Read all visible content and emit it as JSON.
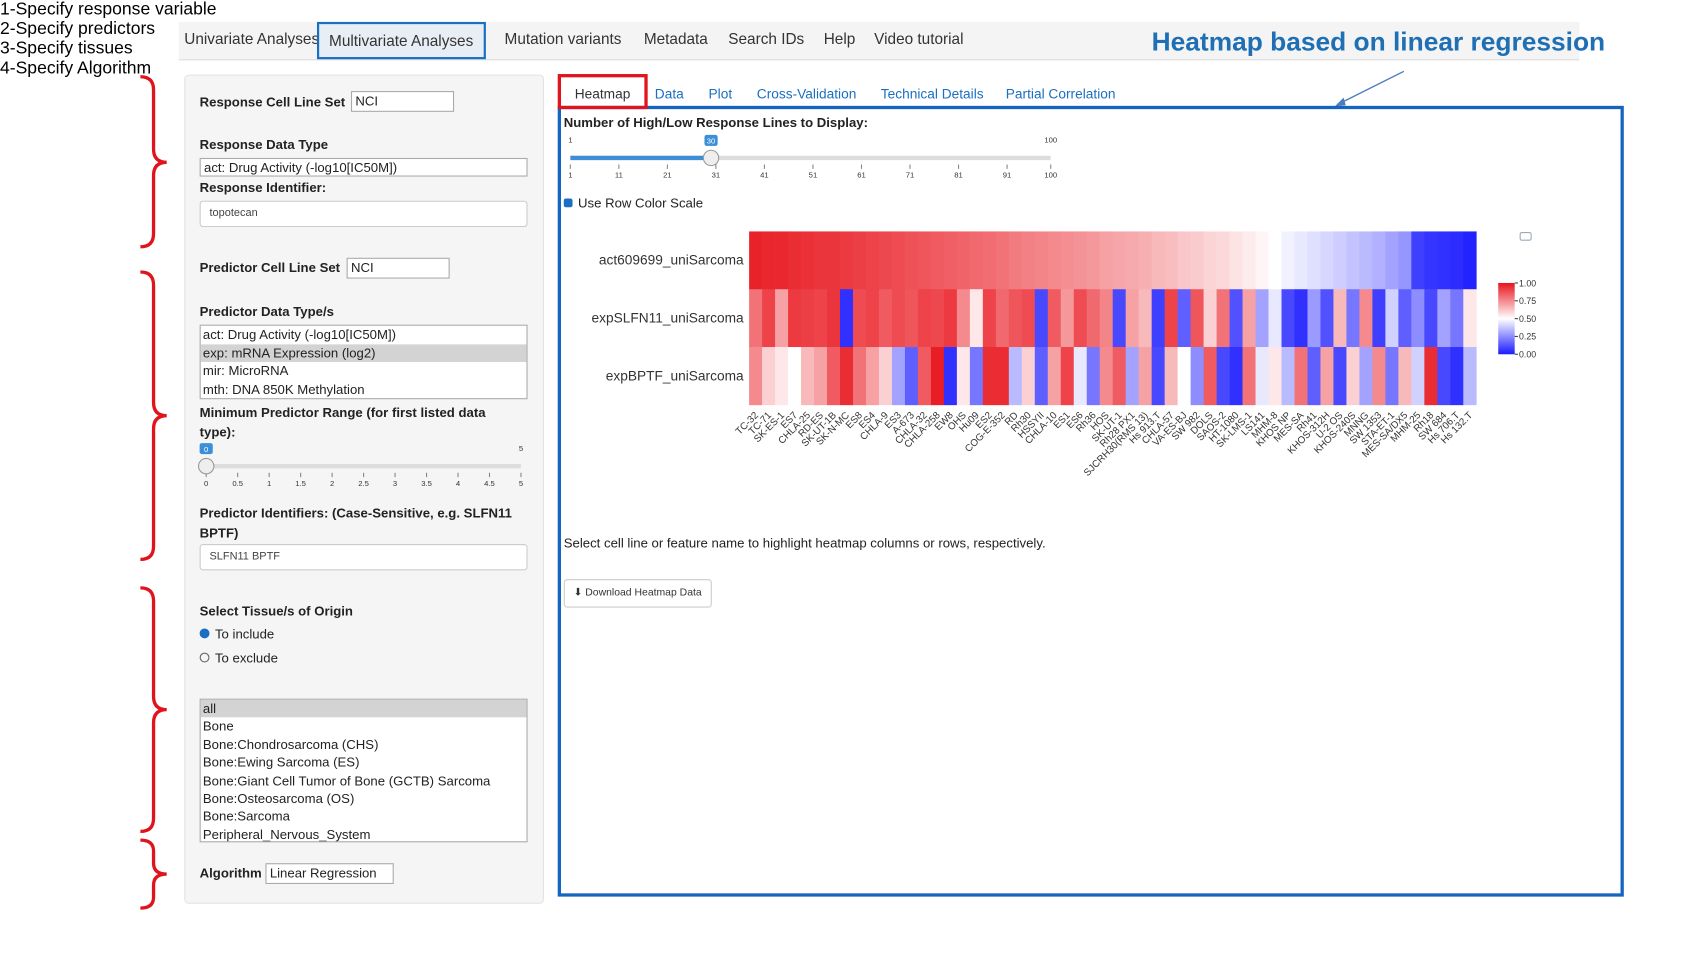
{
  "nav_tabs": [
    "Univariate Analyses",
    "Multivariate Analyses",
    "Mutation variants",
    "Metadata",
    "Search IDs",
    "Help",
    "Video tutorial"
  ],
  "active_nav": 1,
  "annotation_title": "Heatmap based on linear regression",
  "steps": [
    "1-Specify response variable",
    "2-Specify predictors",
    "3-Specify tissues",
    "4-Specify Algorithm"
  ],
  "sidebar": {
    "response_cell_line_set_label": "Response Cell Line Set",
    "response_cell_line_set": "NCI",
    "response_data_type_label": "Response Data Type",
    "response_data_type": "act: Drug Activity (-log10[IC50M])",
    "response_identifier_label": "Response Identifier:",
    "response_identifier": "topotecan",
    "predictor_cell_line_set_label": "Predictor Cell Line Set",
    "predictor_cell_line_set": "NCI",
    "predictor_data_types_label": "Predictor Data Type/s",
    "predictor_data_types": [
      "act: Drug Activity (-log10[IC50M])",
      "exp: mRNA Expression (log2)",
      "mir: MicroRNA",
      "mth: DNA 850K Methylation"
    ],
    "predictor_data_types_selected": 1,
    "min_range_label": "Minimum Predictor Range (for first listed data type):",
    "min_range_slider": {
      "min": 0,
      "max": 5,
      "value": 0,
      "ticks": [
        0,
        0.5,
        1,
        1.5,
        2,
        2.5,
        3,
        3.5,
        4,
        4.5,
        5
      ]
    },
    "predictor_identifiers_label": "Predictor Identifiers: (Case-Sensitive, e.g. SLFN11 BPTF)",
    "predictor_identifiers": "SLFN11 BPTF",
    "tissue_label": "Select Tissue/s of Origin",
    "tissue_modes": [
      "To include",
      "To exclude"
    ],
    "tissue_mode_selected": 0,
    "tissues": [
      "all",
      "Bone",
      "Bone:Chondrosarcoma (CHS)",
      "Bone:Ewing Sarcoma (ES)",
      "Bone:Giant Cell Tumor of Bone (GCTB) Sarcoma",
      "Bone:Osteosarcoma (OS)",
      "Bone:Sarcoma",
      "Peripheral_Nervous_System"
    ],
    "tissues_selected": 0,
    "algorithm_label": "Algorithm",
    "algorithm": "Linear Regression"
  },
  "main_tabs": [
    "Heatmap",
    "Data",
    "Plot",
    "Cross-Validation",
    "Technical Details",
    "Partial Correlation"
  ],
  "active_tab": 0,
  "slider_label": "Number of High/Low Response Lines to Display:",
  "lines_slider": {
    "min": 1,
    "max": 100,
    "value": 30,
    "ticks": [
      1,
      11,
      21,
      31,
      41,
      51,
      61,
      71,
      81,
      91,
      100
    ]
  },
  "checkbox_label": "Use Row Color Scale",
  "chart_data": {
    "type": "heatmap",
    "rows": [
      "act609699_uniSarcoma",
      "expSLFN11_uniSarcoma",
      "expBPTF_uniSarcoma"
    ],
    "categories": [
      "TC-32",
      "TC-71",
      "SK-ES-1",
      "ES7",
      "CHLA-25",
      "RD-ES",
      "SK-UT-1B",
      "SK-N-MC",
      "ES8",
      "ES4",
      "CHLA-9",
      "ES3",
      "A-673",
      "CHLA-32",
      "CHLA-258",
      "EW8",
      "OHS",
      "Hu09",
      "ES2",
      "COG-E-352",
      "RD",
      "Rh30",
      "HSSYII",
      "CHLA-10",
      "ES1",
      "ES6",
      "Rh36",
      "HOS",
      "SK-UT-1",
      "Rh28 PX1",
      "SJCRH30(RMS 13)",
      "Hs 913.T",
      "CHLA-57",
      "VA-ES-BJ",
      "SW 982",
      "DOLS",
      "SAOS-2",
      "HT-1080",
      "SK-LMS-1",
      "LS141",
      "MHM-8",
      "KHOS NP",
      "MES-SA",
      "Rh41",
      "KHOS-312H",
      "U-2 OS",
      "KHOS-240S",
      "MNNG",
      "SW 1353",
      "STA-ET-1",
      "MES-SA/DX5",
      "MHM-25",
      "Rh18",
      "SW 684",
      "Hs 706.T",
      "Hs 132.T"
    ],
    "values": [
      [
        0.97,
        0.96,
        0.96,
        0.95,
        0.94,
        0.93,
        0.93,
        0.92,
        0.91,
        0.9,
        0.89,
        0.88,
        0.87,
        0.86,
        0.85,
        0.84,
        0.83,
        0.82,
        0.81,
        0.8,
        0.78,
        0.77,
        0.76,
        0.75,
        0.74,
        0.73,
        0.72,
        0.7,
        0.69,
        0.68,
        0.67,
        0.65,
        0.64,
        0.62,
        0.61,
        0.59,
        0.58,
        0.56,
        0.54,
        0.52,
        0.5,
        0.47,
        0.45,
        0.43,
        0.41,
        0.39,
        0.37,
        0.35,
        0.33,
        0.3,
        0.27,
        0.08,
        0.06,
        0.05,
        0.04,
        0.02
      ],
      [
        0.8,
        0.9,
        0.7,
        0.92,
        0.91,
        0.9,
        0.93,
        0.05,
        0.88,
        0.9,
        0.85,
        0.88,
        0.86,
        0.9,
        0.89,
        0.92,
        0.75,
        0.55,
        0.9,
        0.82,
        0.86,
        0.88,
        0.1,
        0.85,
        0.72,
        0.88,
        0.82,
        0.76,
        0.1,
        0.7,
        0.65,
        0.08,
        0.9,
        0.15,
        0.86,
        0.6,
        0.8,
        0.12,
        0.7,
        0.3,
        0.45,
        0.1,
        0.05,
        0.28,
        0.12,
        0.65,
        0.2,
        0.75,
        0.08,
        0.4,
        0.15,
        0.25,
        0.1,
        0.3,
        0.2,
        0.55
      ],
      [
        0.75,
        0.6,
        0.55,
        0.5,
        0.65,
        0.7,
        0.85,
        0.95,
        0.8,
        0.7,
        0.6,
        0.3,
        0.15,
        0.85,
        0.98,
        0.05,
        0.55,
        0.2,
        0.95,
        0.95,
        0.35,
        0.6,
        0.15,
        0.7,
        0.9,
        0.45,
        0.2,
        0.75,
        0.85,
        0.3,
        0.7,
        0.1,
        0.65,
        0.5,
        0.25,
        0.85,
        0.1,
        0.05,
        0.8,
        0.45,
        0.55,
        0.35,
        0.8,
        0.15,
        0.7,
        0.1,
        0.6,
        0.3,
        0.75,
        0.2,
        0.65,
        0.4,
        0.95,
        0.1,
        0.05,
        0.35
      ]
    ],
    "zlim": [
      0,
      1
    ],
    "zticks": [
      {
        "value": 1,
        "label": "1.00"
      },
      {
        "value": 0.75,
        "label": "0.75"
      },
      {
        "value": 0.5,
        "label": "0.50"
      },
      {
        "value": 0.25,
        "label": "0.25"
      },
      {
        "value": 0,
        "label": "0.00"
      }
    ],
    "colors": [
      "#1a1aff",
      "#ffffff",
      "#e8141c"
    ]
  },
  "hint": "Select cell line or feature name to highlight heatmap columns or rows, respectively.",
  "download_button": "Download Heatmap Data"
}
